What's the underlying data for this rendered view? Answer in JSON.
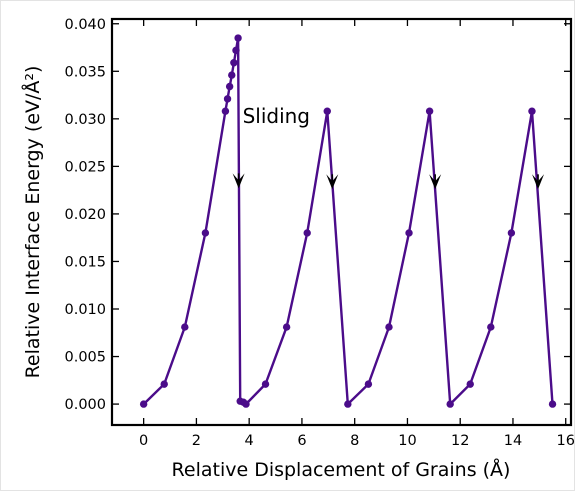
{
  "chart_data": {
    "type": "line",
    "title": "",
    "xlabel": "Relative Displacement of Grains (Å)",
    "ylabel": "Relative Interface Energy (eV/Å²)",
    "xlim": [
      -1.2,
      16.2
    ],
    "ylim": [
      -0.0022,
      0.0405
    ],
    "x_ticks": [
      0,
      2,
      4,
      6,
      8,
      10,
      12,
      14,
      16
    ],
    "x_tick_labels": [
      "0",
      "2",
      "4",
      "6",
      "8",
      "10",
      "12",
      "14",
      "16"
    ],
    "y_ticks": [
      0,
      0.005,
      0.01,
      0.015,
      0.02,
      0.025,
      0.03,
      0.035,
      0.04
    ],
    "y_tick_labels": [
      "0.000",
      "0.005",
      "0.010",
      "0.015",
      "0.020",
      "0.025",
      "0.030",
      "0.035",
      "0.040"
    ],
    "grid": false,
    "legend": "none",
    "series": [
      {
        "color": "#4b0c8a",
        "x": [
          0,
          0.78,
          1.56,
          2.34,
          3.1,
          3.18,
          3.26,
          3.34,
          3.42,
          3.5,
          3.58,
          3.66,
          3.78,
          3.88,
          4.62,
          5.42,
          6.2,
          6.96,
          7.74,
          8.52,
          9.3,
          10.06,
          10.84,
          11.62,
          12.38,
          13.16,
          13.94,
          14.72,
          15.5
        ],
        "y": [
          0.0,
          0.0021,
          0.0081,
          0.018,
          0.0308,
          0.0321,
          0.0334,
          0.0346,
          0.0359,
          0.0372,
          0.0385,
          0.0003,
          0.0002,
          0.0,
          0.0021,
          0.0081,
          0.018,
          0.0308,
          0.0,
          0.0021,
          0.0081,
          0.018,
          0.0308,
          0.0,
          0.0021,
          0.0081,
          0.018,
          0.0308,
          0.0
        ]
      }
    ],
    "annotations": [
      {
        "text": "Sliding",
        "x": 3.75,
        "y": 0.0303
      }
    ],
    "arrows": [
      {
        "x": 3.6,
        "y": 0.0229
      },
      {
        "x": 7.15,
        "y": 0.0228
      },
      {
        "x": 11.05,
        "y": 0.0228
      },
      {
        "x": 14.95,
        "y": 0.0228
      }
    ]
  }
}
